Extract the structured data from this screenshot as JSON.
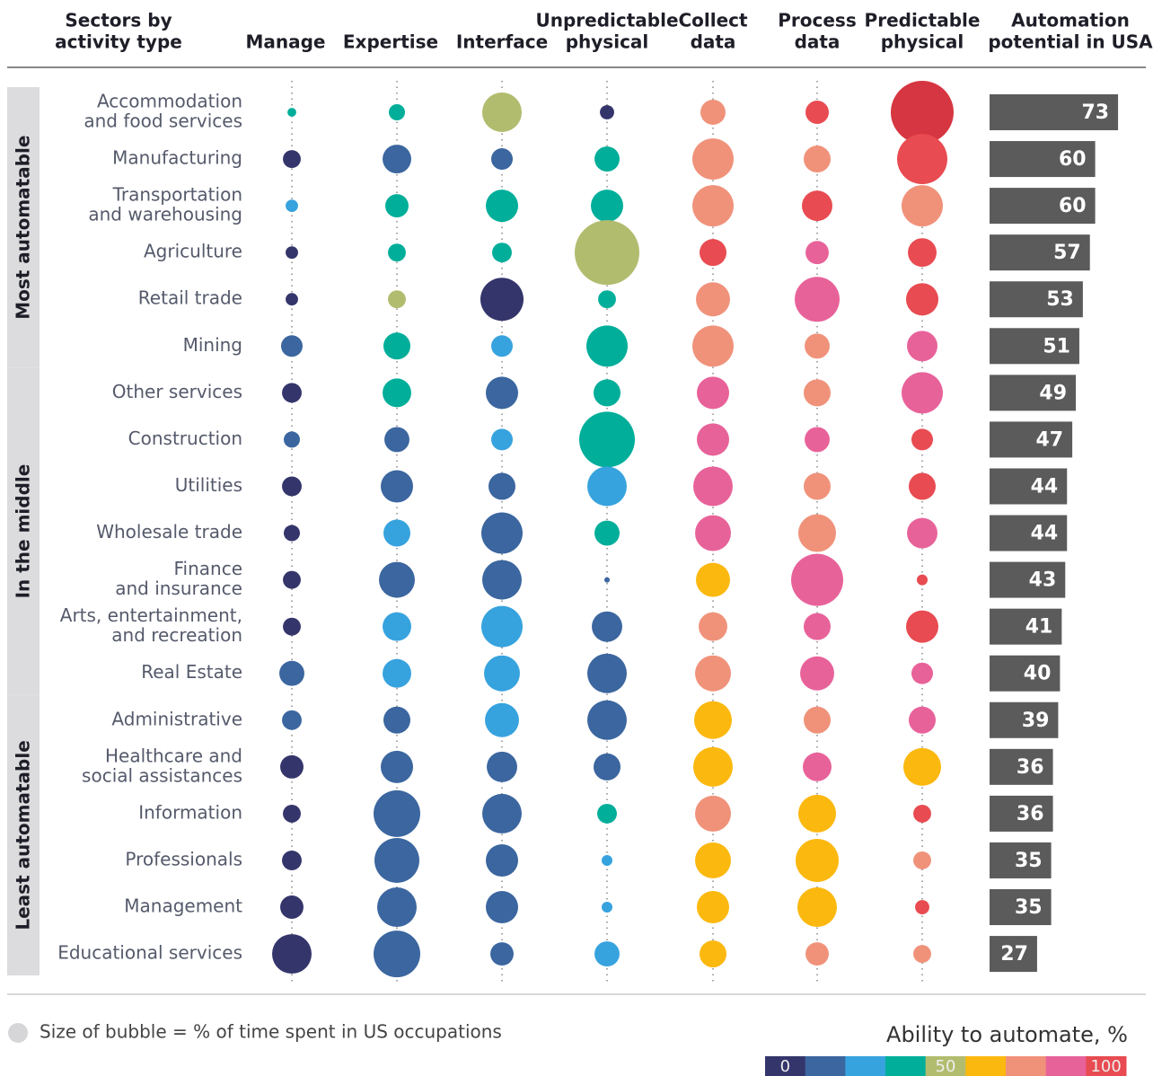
{
  "chart_data": {
    "type": "bubble-matrix",
    "row_header": [
      "Sectors by",
      "activity type"
    ],
    "columns": [
      [
        "Manage"
      ],
      [
        "Expertise"
      ],
      [
        "Interface"
      ],
      [
        "Unpredictable",
        "physical"
      ],
      [
        "Collect",
        "data"
      ],
      [
        "Process",
        "data"
      ],
      [
        "Predictable",
        "physical"
      ]
    ],
    "bar_header": [
      "Automation",
      "potential in USA"
    ],
    "bar_color": "#5b5b5b",
    "groups": [
      {
        "label": "Most automatable",
        "sectors": [
          {
            "label": [
              "Accommodation",
              "and food services"
            ],
            "sizes": [
              0.8,
              2.7,
              16.1,
              2.1,
              6.5,
              5.6,
              40.8
            ],
            "colors": [
              "#00ae9a",
              "#00ae9a",
              "#b2bc6e",
              "#34356b",
              "#f0927a",
              "#e84b51",
              "#d63641"
            ],
            "automation": 73
          },
          {
            "label": [
              "Manufacturing"
            ],
            "sizes": [
              3.3,
              8.5,
              4.8,
              6.5,
              17.6,
              7.5,
              26.1
            ],
            "colors": [
              "#34356b",
              "#3b669f",
              "#3b669f",
              "#00ae9a",
              "#f0927a",
              "#f0927a",
              "#e84b51"
            ],
            "automation": 60
          },
          {
            "label": [
              "Transportation",
              "and warehousing"
            ],
            "sizes": [
              1.6,
              5.6,
              10.8,
              10.8,
              17.6,
              9.6,
              17.6
            ],
            "colors": [
              "#37a3de",
              "#00ae9a",
              "#00ae9a",
              "#00ae9a",
              "#f0927a",
              "#e84b51",
              "#f0927a"
            ],
            "automation": 60
          },
          {
            "label": [
              "Agriculture"
            ],
            "sizes": [
              1.6,
              3.3,
              4,
              43.2,
              7.5,
              5.6,
              8.5
            ],
            "colors": [
              "#34356b",
              "#00ae9a",
              "#00ae9a",
              "#b2bc6e",
              "#e84b51",
              "#e8629a",
              "#e84b51"
            ],
            "automation": 57
          },
          {
            "label": [
              "Retail trade"
            ],
            "sizes": [
              1.6,
              3.3,
              19.2,
              3.3,
              12,
              20.8,
              10.8
            ],
            "colors": [
              "#34356b",
              "#b2bc6e",
              "#34356b",
              "#00ae9a",
              "#f0927a",
              "#e8629a",
              "#e84b51"
            ],
            "automation": 53
          },
          {
            "label": [
              "Mining"
            ],
            "sizes": [
              4.8,
              7.5,
              4.8,
              17.6,
              17.6,
              6.5,
              9.6
            ],
            "colors": [
              "#3b669f",
              "#00ae9a",
              "#37a3de",
              "#00ae9a",
              "#f0927a",
              "#f0927a",
              "#e8629a"
            ],
            "automation": 51
          }
        ]
      },
      {
        "label": "In the middle",
        "sectors": [
          {
            "label": [
              "Other services"
            ],
            "sizes": [
              4,
              8.5,
              10.8,
              7.5,
              10.8,
              7.5,
              17.6
            ],
            "colors": [
              "#34356b",
              "#00ae9a",
              "#3b669f",
              "#00ae9a",
              "#e8629a",
              "#f0927a",
              "#e8629a"
            ],
            "automation": 49
          },
          {
            "label": [
              "Construction"
            ],
            "sizes": [
              2.7,
              6.5,
              4.8,
              32,
              10.8,
              6.5,
              4.8
            ],
            "colors": [
              "#3b669f",
              "#3b669f",
              "#37a3de",
              "#00ae9a",
              "#e8629a",
              "#e8629a",
              "#e84b51"
            ],
            "automation": 47
          },
          {
            "label": [
              "Utilities"
            ],
            "sizes": [
              4,
              10.8,
              7.5,
              16.1,
              16.1,
              7.5,
              7.5
            ],
            "colors": [
              "#34356b",
              "#3b669f",
              "#3b669f",
              "#37a3de",
              "#e8629a",
              "#f0927a",
              "#e84b51"
            ],
            "automation": 44
          },
          {
            "label": [
              "Wholesale trade"
            ],
            "sizes": [
              2.7,
              7.5,
              17.6,
              6.5,
              13.3,
              14.7,
              9.6
            ],
            "colors": [
              "#34356b",
              "#37a3de",
              "#3b669f",
              "#00ae9a",
              "#e8629a",
              "#f0927a",
              "#e8629a"
            ],
            "automation": 44
          },
          {
            "label": [
              "Finance",
              "and insurance"
            ],
            "sizes": [
              3.3,
              13.3,
              16.1,
              0.3,
              12,
              28,
              1.2
            ],
            "colors": [
              "#34356b",
              "#3b669f",
              "#3b669f",
              "#3b669f",
              "#fbb80f",
              "#e8629a",
              "#e84b51"
            ],
            "automation": 43
          },
          {
            "label": [
              "Arts, entertainment,",
              "and recreation"
            ],
            "sizes": [
              3.3,
              8.5,
              17.6,
              9.6,
              8.5,
              7.5,
              10.8
            ],
            "colors": [
              "#34356b",
              "#37a3de",
              "#37a3de",
              "#3b669f",
              "#f0927a",
              "#e8629a",
              "#e84b51"
            ],
            "automation": 41
          },
          {
            "label": [
              "Real Estate"
            ],
            "sizes": [
              6.5,
              8.5,
              13.3,
              16.1,
              13.3,
              12,
              4.8
            ],
            "colors": [
              "#3b669f",
              "#37a3de",
              "#37a3de",
              "#3b669f",
              "#f0927a",
              "#e8629a",
              "#e8629a"
            ],
            "automation": 40
          }
        ]
      },
      {
        "label": "Least automatable",
        "sectors": [
          {
            "label": [
              "Administrative"
            ],
            "sizes": [
              4,
              7.5,
              12,
              16.1,
              14.7,
              7.5,
              7.5
            ],
            "colors": [
              "#3b669f",
              "#3b669f",
              "#37a3de",
              "#3b669f",
              "#fbb80f",
              "#f0927a",
              "#e8629a"
            ],
            "automation": 39
          },
          {
            "label": [
              "Healthcare and",
              "social assistances"
            ],
            "sizes": [
              5.6,
              10.8,
              9.6,
              7.5,
              16.1,
              8.5,
              14.7
            ],
            "colors": [
              "#34356b",
              "#3b669f",
              "#3b669f",
              "#3b669f",
              "#fbb80f",
              "#e8629a",
              "#fbb80f"
            ],
            "automation": 36
          },
          {
            "label": [
              "Information"
            ],
            "sizes": [
              3.3,
              22.5,
              16.1,
              4,
              13.3,
              14.7,
              3.3
            ],
            "colors": [
              "#34356b",
              "#3b669f",
              "#3b669f",
              "#00ae9a",
              "#f0927a",
              "#fbb80f",
              "#e84b51"
            ],
            "automation": 36
          },
          {
            "label": [
              "Professionals"
            ],
            "sizes": [
              4,
              20.8,
              10.8,
              1.2,
              13.3,
              19.2,
              3.3
            ],
            "colors": [
              "#34356b",
              "#3b669f",
              "#3b669f",
              "#37a3de",
              "#fbb80f",
              "#fbb80f",
              "#f0927a"
            ],
            "automation": 35
          },
          {
            "label": [
              "Management"
            ],
            "sizes": [
              5.6,
              16.1,
              10.8,
              1.2,
              10.8,
              16.1,
              2.1
            ],
            "colors": [
              "#34356b",
              "#3b669f",
              "#3b669f",
              "#37a3de",
              "#fbb80f",
              "#fbb80f",
              "#e84b51"
            ],
            "automation": 35
          },
          {
            "label": [
              "Educational services"
            ],
            "sizes": [
              16.1,
              22.5,
              5.6,
              6.5,
              7.5,
              5.6,
              3.3
            ],
            "colors": [
              "#34356b",
              "#3b669f",
              "#3b669f",
              "#37a3de",
              "#fbb80f",
              "#f0927a",
              "#f0927a"
            ],
            "automation": 27
          }
        ]
      }
    ],
    "size_legend": "Size of bubble = % of time spent in US occupations",
    "color_scale": {
      "title": "Ability to automate, %",
      "colors": [
        "#34356b",
        "#3b669f",
        "#37a3de",
        "#00ae9a",
        "#b2bc6e",
        "#fbb80f",
        "#f0927a",
        "#e8629a",
        "#e84b51"
      ],
      "ticks": [
        0,
        50,
        100
      ]
    }
  }
}
